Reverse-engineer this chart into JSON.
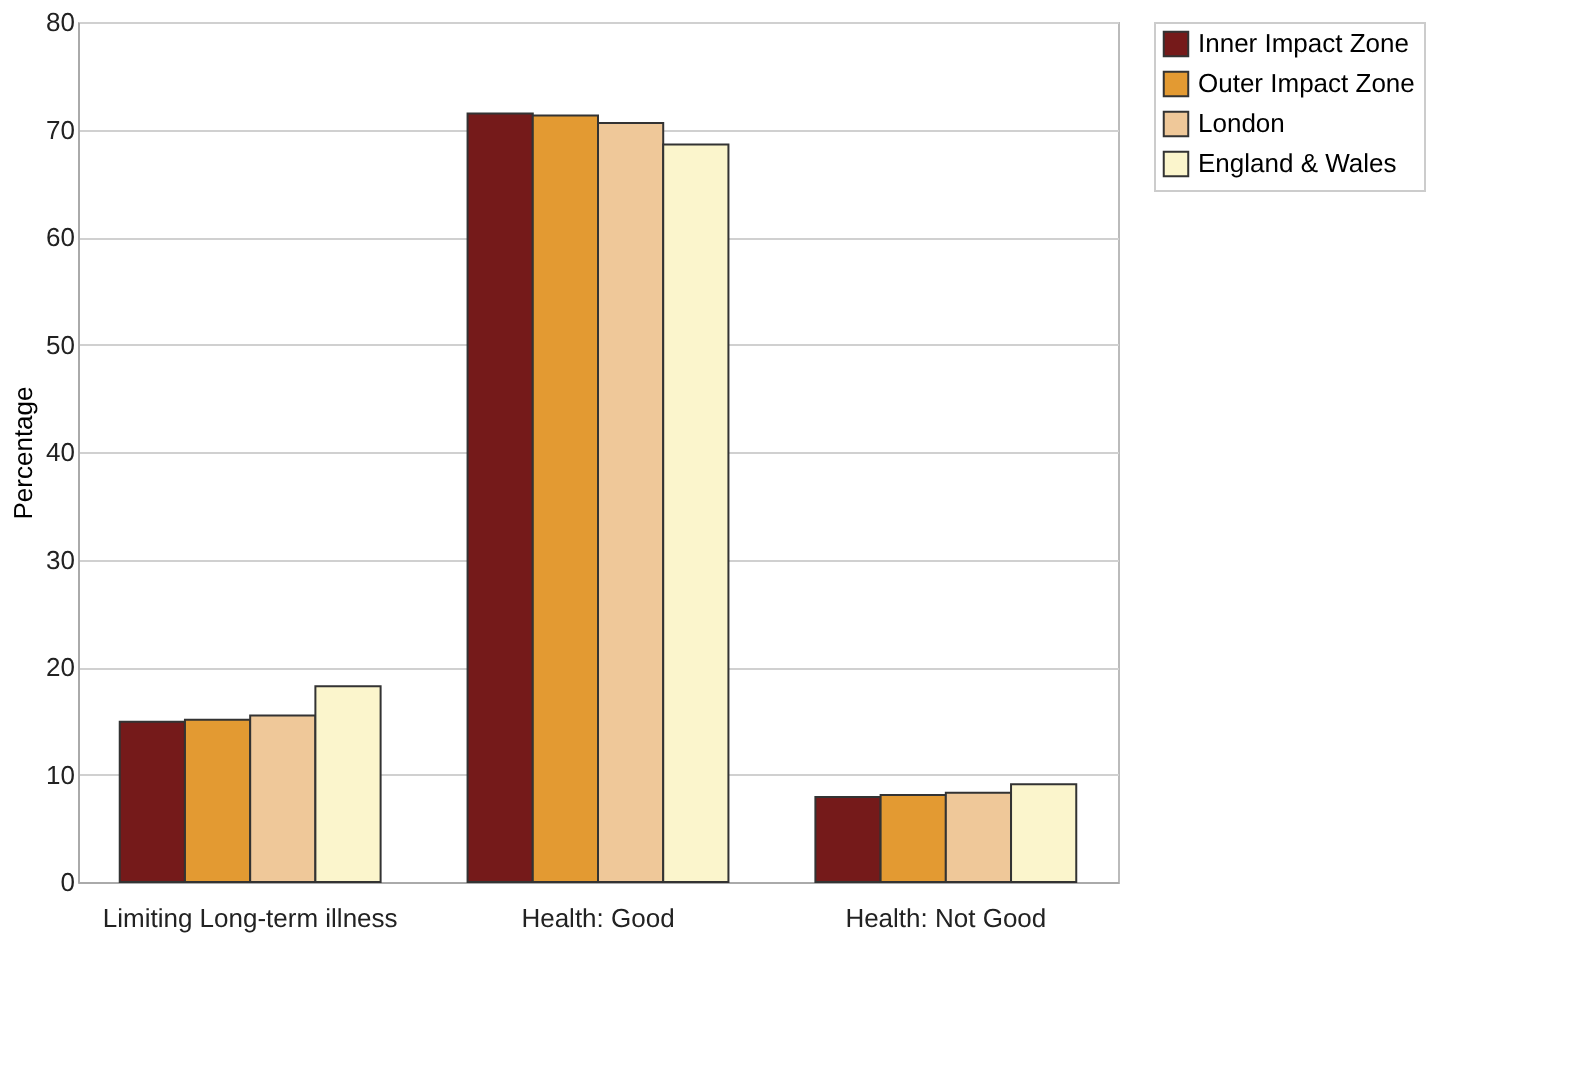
{
  "chart_data": {
    "type": "bar",
    "ylabel": "Percentage",
    "categories": [
      "Limiting Long-term illness",
      "Health: Good",
      "Health: Not Good"
    ],
    "series": [
      {
        "name": "Inner Impact Zone",
        "color": "#751a1a",
        "values": [
          14.9,
          71.5,
          7.9
        ]
      },
      {
        "name": "Outer Impact Zone",
        "color": "#e39a32",
        "values": [
          15.1,
          71.3,
          8.1
        ]
      },
      {
        "name": "London",
        "color": "#efc899",
        "values": [
          15.5,
          70.6,
          8.3
        ]
      },
      {
        "name": "England & Wales",
        "color": "#fbf5cc",
        "values": [
          18.2,
          68.6,
          9.1
        ]
      }
    ],
    "ylim": [
      0,
      80
    ],
    "yticks": [
      0,
      10,
      20,
      30,
      40,
      50,
      60,
      70,
      80
    ],
    "grid": "y",
    "legend": "right"
  }
}
